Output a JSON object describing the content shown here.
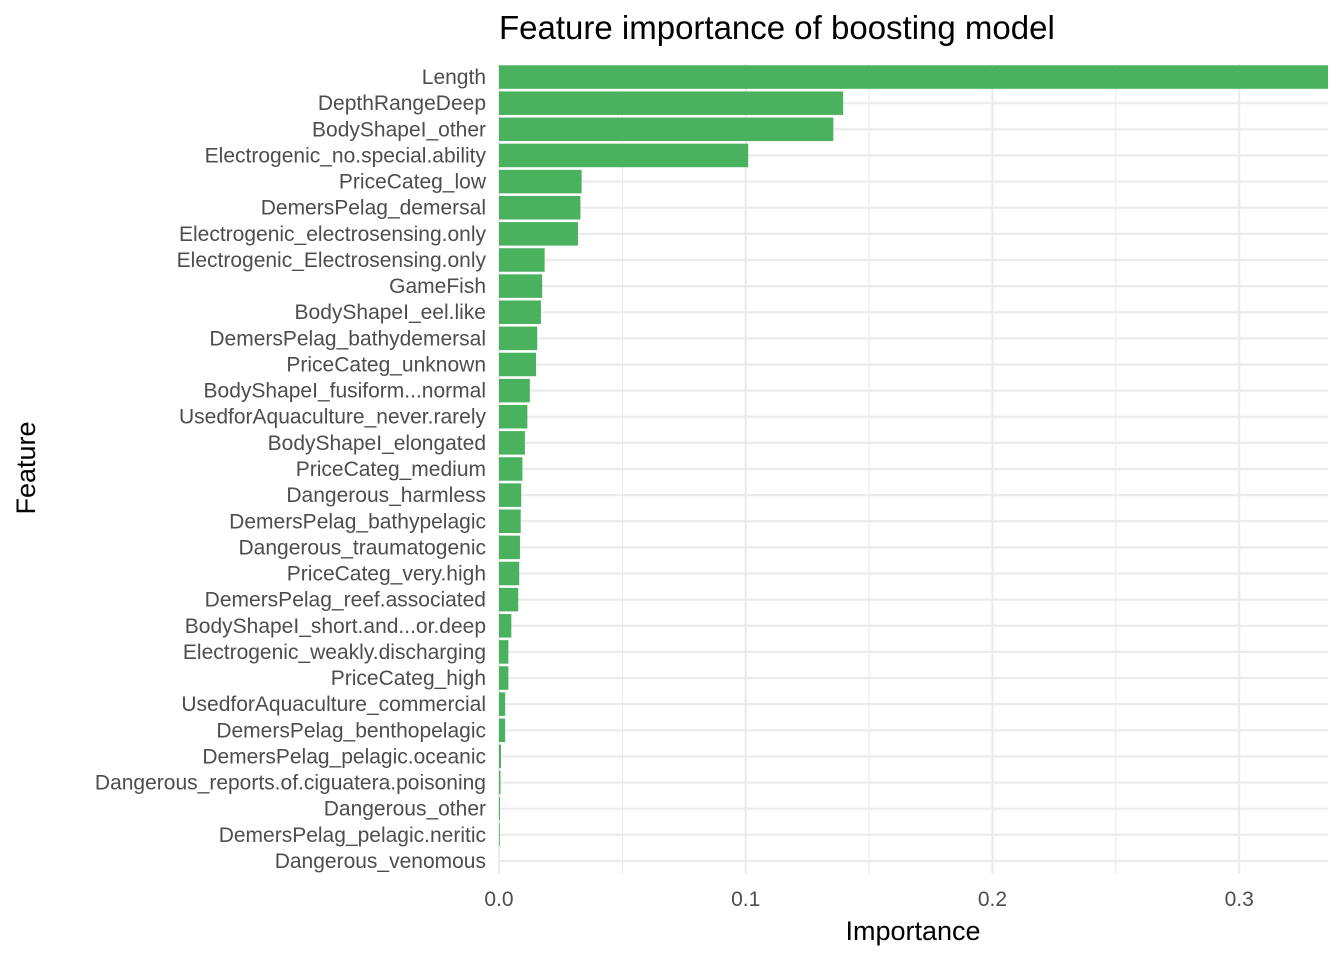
{
  "chart_data": {
    "type": "bar",
    "orientation": "horizontal",
    "title": "Feature importance of boosting model",
    "xlabel": "Importance",
    "ylabel": "Feature",
    "xlim": [
      0,
      0.336
    ],
    "x_ticks": [
      0.0,
      0.1,
      0.2,
      0.3
    ],
    "x_tick_labels": [
      "0.0",
      "0.1",
      "0.2",
      "0.3"
    ],
    "grid": true,
    "legend": "none",
    "bar_color": "#4ab25f",
    "categories": [
      "Length",
      "DepthRangeDeep",
      "BodyShapeI_other",
      "Electrogenic_no.special.ability",
      "PriceCateg_low",
      "DemersPelag_demersal",
      "Electrogenic_electrosensing.only",
      "Electrogenic_Electrosensing.only",
      "GameFish",
      "BodyShapeI_eel.like",
      "DemersPelag_bathydemersal",
      "PriceCateg_unknown",
      "BodyShapeI_fusiform...normal",
      "UsedforAquaculture_never.rarely",
      "BodyShapeI_elongated",
      "PriceCateg_medium",
      "Dangerous_harmless",
      "DemersPelag_bathypelagic",
      "Dangerous_traumatogenic",
      "PriceCateg_very.high",
      "DemersPelag_reef.associated",
      "BodyShapeI_short.and...or.deep",
      "Electrogenic_weakly.discharging",
      "PriceCateg_high",
      "UsedforAquaculture_commercial",
      "DemersPelag_benthopelagic",
      "DemersPelag_pelagic.oceanic",
      "Dangerous_reports.of.ciguatera.poisoning",
      "Dangerous_other",
      "DemersPelag_pelagic.neritic",
      "Dangerous_venomous"
    ],
    "values": [
      0.336,
      0.1395,
      0.1355,
      0.101,
      0.0335,
      0.033,
      0.032,
      0.0185,
      0.0175,
      0.017,
      0.0155,
      0.015,
      0.0125,
      0.0115,
      0.0105,
      0.0095,
      0.009,
      0.0088,
      0.0085,
      0.0082,
      0.0078,
      0.005,
      0.0038,
      0.0038,
      0.0025,
      0.0025,
      0.0008,
      0.0006,
      0.0004,
      0.0003,
      0.0
    ]
  }
}
